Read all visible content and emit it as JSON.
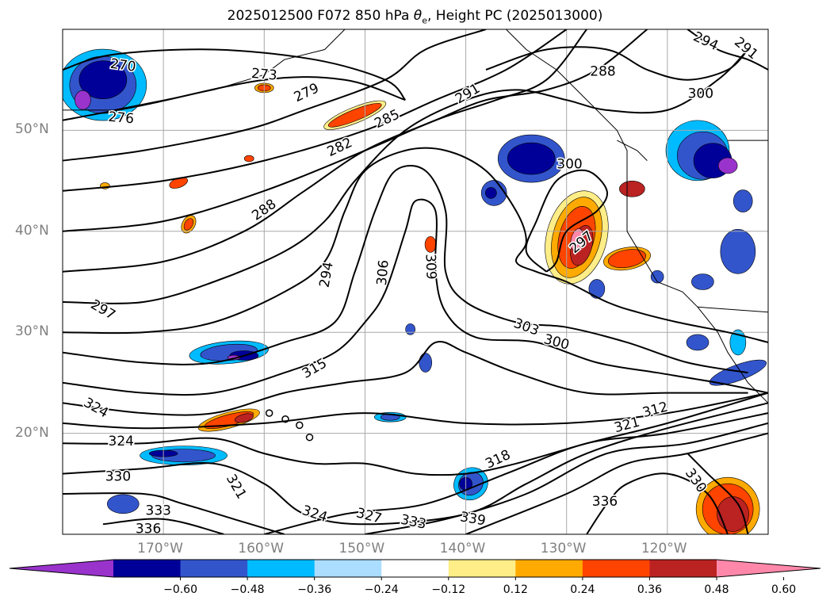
{
  "title": {
    "prefix": "2025012500 F072 850 hPa ",
    "var_symbol": "θ",
    "var_sub": "e",
    "suffix": ", Height PC (2025013000)"
  },
  "colors": {
    "frame": "#000000",
    "grid": "#a8a8a8",
    "contour": "#000000",
    "coast": "#000000",
    "axis_label": "#808080"
  },
  "chart_data": {
    "type": "heatmap",
    "description_of_fields": [
      "filled anomaly (height PC)",
      "equivalent potential temperature contours (K)"
    ],
    "lat_ticks": [
      "50°N",
      "40°N",
      "30°N",
      "20°N"
    ],
    "lat_values": [
      50,
      40,
      30,
      20
    ],
    "lon_ticks": [
      "170°W",
      "160°W",
      "150°W",
      "140°W",
      "130°W",
      "120°W"
    ],
    "lon_values": [
      -170,
      -160,
      -150,
      -140,
      -130,
      -120
    ],
    "lon_range": [
      -180,
      -110
    ],
    "lat_range": [
      10,
      60
    ],
    "grid": true,
    "contour_labels": [
      {
        "text": "270",
        "lon": -174,
        "lat": 56.4,
        "rot": 8
      },
      {
        "text": "273",
        "lon": -160,
        "lat": 55.5,
        "rot": 5
      },
      {
        "text": "276",
        "lon": -174.2,
        "lat": 51.2,
        "rot": 5
      },
      {
        "text": "279",
        "lon": -155.8,
        "lat": 53.7,
        "rot": -25
      },
      {
        "text": "282",
        "lon": -152.5,
        "lat": 48.3,
        "rot": -25
      },
      {
        "text": "285",
        "lon": -147.8,
        "lat": 51.1,
        "rot": -25
      },
      {
        "text": "288",
        "lon": -160,
        "lat": 42.1,
        "rot": -35
      },
      {
        "text": "291",
        "lon": -139.8,
        "lat": 53.6,
        "rot": -30
      },
      {
        "text": "294",
        "lon": -153.8,
        "lat": 35.7,
        "rot": -80
      },
      {
        "text": "297",
        "lon": -176,
        "lat": 32.2,
        "rot": 30
      },
      {
        "text": "306",
        "lon": -148.2,
        "lat": 35.9,
        "rot": -85
      },
      {
        "text": "309",
        "lon": -143.5,
        "lat": 36.5,
        "rot": 88
      },
      {
        "text": "303",
        "lon": -134,
        "lat": 30.5,
        "rot": 20
      },
      {
        "text": "300",
        "lon": -131,
        "lat": 29,
        "rot": 15
      },
      {
        "text": "297",
        "lon": -128.5,
        "lat": 38.9,
        "rot": -40
      },
      {
        "text": "300",
        "lon": -129.7,
        "lat": 46.6,
        "rot": 0
      },
      {
        "text": "315",
        "lon": -155,
        "lat": 26.4,
        "rot": -30
      },
      {
        "text": "324",
        "lon": -176.7,
        "lat": 22.5,
        "rot": 30
      },
      {
        "text": "324",
        "lon": -174.2,
        "lat": 19.2,
        "rot": 0
      },
      {
        "text": "330",
        "lon": -174.5,
        "lat": 15.7,
        "rot": 0
      },
      {
        "text": "333",
        "lon": -170.5,
        "lat": 12.3,
        "rot": 0
      },
      {
        "text": "336",
        "lon": -171.5,
        "lat": 10.5,
        "rot": 0
      },
      {
        "text": "321",
        "lon": -162.8,
        "lat": 14.7,
        "rot": 60
      },
      {
        "text": "324",
        "lon": -155,
        "lat": 12,
        "rot": 18
      },
      {
        "text": "327",
        "lon": -149.6,
        "lat": 11.8,
        "rot": 15
      },
      {
        "text": "333",
        "lon": -145.2,
        "lat": 11.2,
        "rot": 12
      },
      {
        "text": "339",
        "lon": -139.3,
        "lat": 11.5,
        "rot": 10
      },
      {
        "text": "318",
        "lon": -136.8,
        "lat": 17.4,
        "rot": -25
      },
      {
        "text": "321",
        "lon": -124,
        "lat": 20.8,
        "rot": -15
      },
      {
        "text": "312",
        "lon": -121.2,
        "lat": 22.3,
        "rot": -15
      },
      {
        "text": "336",
        "lon": -126.2,
        "lat": 13.2,
        "rot": 0
      },
      {
        "text": "330",
        "lon": -117.2,
        "lat": 15.3,
        "rot": 55
      },
      {
        "text": "294",
        "lon": -116.2,
        "lat": 58.8,
        "rot": 25
      },
      {
        "text": "291",
        "lon": -112.2,
        "lat": 58.1,
        "rot": 40
      },
      {
        "text": "288",
        "lon": -126.4,
        "lat": 55.8,
        "rot": 0
      },
      {
        "text": "300",
        "lon": -116.7,
        "lat": 53.6,
        "rot": 0
      }
    ],
    "colorbar": {
      "ticks": [
        "−0.60",
        "−0.48",
        "−0.36",
        "−0.24",
        "−0.12",
        "0.12",
        "0.24",
        "0.36",
        "0.48",
        "0.60"
      ],
      "tick_values": [
        -0.6,
        -0.48,
        -0.36,
        -0.24,
        -0.12,
        0.12,
        0.24,
        0.36,
        0.48,
        0.6
      ],
      "colors": [
        "#9933cc",
        "#000099",
        "#3355cc",
        "#00bbff",
        "#aaddff",
        "#ffffff",
        "#ffee88",
        "#ffaa00",
        "#ff4400",
        "#bb2222",
        "#ff88aa"
      ],
      "extend": "both"
    }
  }
}
